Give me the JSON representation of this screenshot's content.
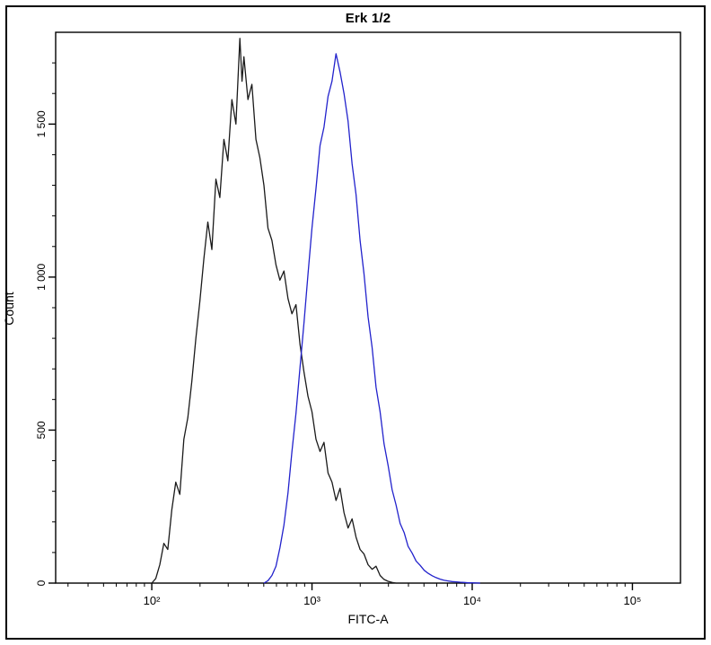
{
  "chart_data": {
    "type": "line",
    "subtype": "flow-cytometry-histogram",
    "title": "Erk 1/2",
    "xlabel": "FITC-A",
    "ylabel": "Count",
    "x_scale": "log10",
    "xlim_log10": [
      1.4,
      5.3
    ],
    "ylim": [
      0,
      1800
    ],
    "x_major_ticks": [
      100,
      1000,
      10000,
      100000
    ],
    "x_major_tick_labels": [
      "10²",
      "10³",
      "10⁴",
      "10⁵"
    ],
    "y_major_ticks": [
      0,
      500,
      1000,
      1500
    ],
    "y_major_tick_labels": [
      "0",
      "500",
      "1 000",
      "1 500"
    ],
    "y_minor_tick_step": 100,
    "grid": false,
    "legend": "none",
    "frame_color": "#000000",
    "background": "#ffffff",
    "series": [
      {
        "name": "black-curve",
        "color": "#1a1a1a",
        "points": [
          [
            2.0,
            0
          ],
          [
            2.025,
            15
          ],
          [
            2.05,
            60
          ],
          [
            2.075,
            130
          ],
          [
            2.1,
            110
          ],
          [
            2.125,
            240
          ],
          [
            2.15,
            330
          ],
          [
            2.175,
            290
          ],
          [
            2.2,
            470
          ],
          [
            2.225,
            540
          ],
          [
            2.25,
            660
          ],
          [
            2.275,
            800
          ],
          [
            2.3,
            920
          ],
          [
            2.325,
            1060
          ],
          [
            2.35,
            1180
          ],
          [
            2.375,
            1090
          ],
          [
            2.4,
            1320
          ],
          [
            2.425,
            1260
          ],
          [
            2.45,
            1450
          ],
          [
            2.475,
            1380
          ],
          [
            2.5,
            1580
          ],
          [
            2.525,
            1500
          ],
          [
            2.55,
            1780
          ],
          [
            2.563,
            1640
          ],
          [
            2.575,
            1720
          ],
          [
            2.6,
            1580
          ],
          [
            2.625,
            1630
          ],
          [
            2.65,
            1450
          ],
          [
            2.675,
            1390
          ],
          [
            2.7,
            1300
          ],
          [
            2.725,
            1160
          ],
          [
            2.75,
            1120
          ],
          [
            2.775,
            1040
          ],
          [
            2.8,
            990
          ],
          [
            2.825,
            1020
          ],
          [
            2.85,
            930
          ],
          [
            2.875,
            880
          ],
          [
            2.9,
            910
          ],
          [
            2.925,
            780
          ],
          [
            2.95,
            690
          ],
          [
            2.975,
            610
          ],
          [
            3.0,
            560
          ],
          [
            3.025,
            470
          ],
          [
            3.05,
            430
          ],
          [
            3.075,
            460
          ],
          [
            3.1,
            360
          ],
          [
            3.125,
            330
          ],
          [
            3.15,
            270
          ],
          [
            3.175,
            310
          ],
          [
            3.2,
            230
          ],
          [
            3.225,
            180
          ],
          [
            3.25,
            210
          ],
          [
            3.275,
            150
          ],
          [
            3.3,
            110
          ],
          [
            3.325,
            95
          ],
          [
            3.35,
            60
          ],
          [
            3.375,
            45
          ],
          [
            3.4,
            55
          ],
          [
            3.425,
            25
          ],
          [
            3.45,
            12
          ],
          [
            3.475,
            6
          ],
          [
            3.5,
            2
          ],
          [
            3.525,
            0
          ]
        ]
      },
      {
        "name": "blue-curve",
        "color": "#2222cc",
        "points": [
          [
            2.7,
            0
          ],
          [
            2.725,
            8
          ],
          [
            2.75,
            25
          ],
          [
            2.775,
            55
          ],
          [
            2.8,
            115
          ],
          [
            2.825,
            190
          ],
          [
            2.85,
            295
          ],
          [
            2.875,
            430
          ],
          [
            2.9,
            555
          ],
          [
            2.925,
            705
          ],
          [
            2.95,
            850
          ],
          [
            2.975,
            1010
          ],
          [
            3.0,
            1160
          ],
          [
            3.025,
            1290
          ],
          [
            3.05,
            1430
          ],
          [
            3.075,
            1490
          ],
          [
            3.1,
            1590
          ],
          [
            3.125,
            1640
          ],
          [
            3.15,
            1730
          ],
          [
            3.175,
            1670
          ],
          [
            3.2,
            1600
          ],
          [
            3.225,
            1510
          ],
          [
            3.25,
            1370
          ],
          [
            3.275,
            1270
          ],
          [
            3.3,
            1120
          ],
          [
            3.325,
            1010
          ],
          [
            3.35,
            870
          ],
          [
            3.375,
            770
          ],
          [
            3.4,
            640
          ],
          [
            3.425,
            560
          ],
          [
            3.45,
            455
          ],
          [
            3.475,
            385
          ],
          [
            3.5,
            305
          ],
          [
            3.525,
            255
          ],
          [
            3.55,
            195
          ],
          [
            3.575,
            165
          ],
          [
            3.6,
            120
          ],
          [
            3.625,
            98
          ],
          [
            3.65,
            72
          ],
          [
            3.675,
            58
          ],
          [
            3.7,
            42
          ],
          [
            3.725,
            32
          ],
          [
            3.75,
            24
          ],
          [
            3.775,
            18
          ],
          [
            3.8,
            13
          ],
          [
            3.825,
            9
          ],
          [
            3.85,
            7
          ],
          [
            3.875,
            5
          ],
          [
            3.9,
            4
          ],
          [
            3.925,
            3
          ],
          [
            3.95,
            2
          ],
          [
            3.975,
            1
          ],
          [
            4.0,
            1
          ],
          [
            4.05,
            0
          ]
        ]
      }
    ]
  }
}
